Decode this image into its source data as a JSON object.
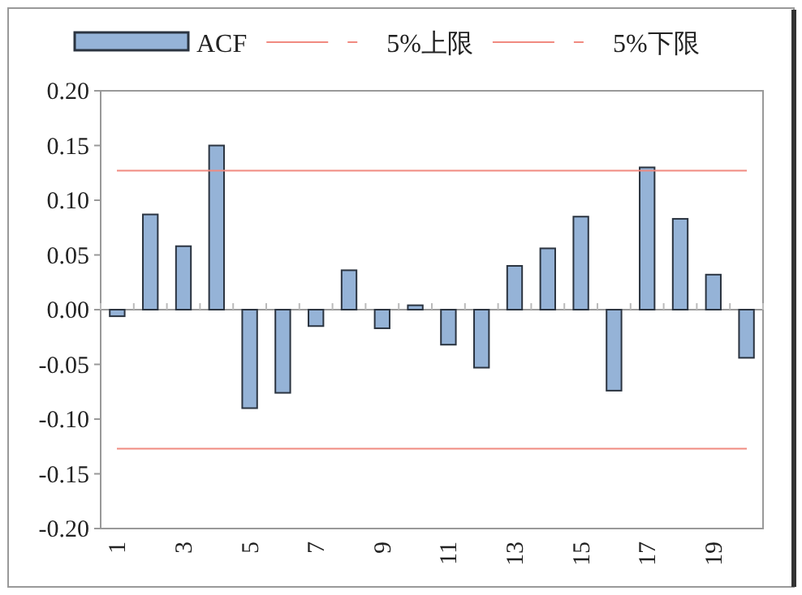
{
  "chart_data": {
    "type": "bar",
    "categories": [
      "1",
      null,
      "3",
      null,
      "5",
      null,
      "7",
      null,
      "9",
      null,
      "11",
      null,
      "13",
      null,
      "15",
      null,
      "17",
      null,
      "19",
      null
    ],
    "series": [
      {
        "name": "ACF",
        "color": "#95b3d7",
        "values": [
          -0.006,
          0.087,
          0.058,
          0.15,
          -0.09,
          -0.076,
          -0.015,
          0.036,
          -0.017,
          0.004,
          -0.032,
          -0.053,
          0.04,
          0.056,
          0.085,
          -0.074,
          0.13,
          0.083,
          0.032,
          -0.044
        ]
      }
    ],
    "ylim": [
      -0.2,
      0.2
    ],
    "yticks": [
      {
        "value": -0.2,
        "label": "-0.20"
      },
      {
        "value": -0.15,
        "label": "-0.15"
      },
      {
        "value": -0.1,
        "label": "-0.10"
      },
      {
        "value": -0.05,
        "label": "-0.05"
      },
      {
        "value": 0,
        "label": "0.00"
      },
      {
        "value": 0.05,
        "label": "0.05"
      },
      {
        "value": 0.1,
        "label": "0.10"
      },
      {
        "value": 0.15,
        "label": "0.15"
      },
      {
        "value": 0.2,
        "label": "0.20"
      }
    ],
    "ref_lines": [
      {
        "axis": "y",
        "value": 0.127,
        "label": "5%上限",
        "color": "#f08a80"
      },
      {
        "axis": "y",
        "value": -0.127,
        "label": "5%下限",
        "color": "#f08a80"
      }
    ],
    "legend": "top"
  }
}
